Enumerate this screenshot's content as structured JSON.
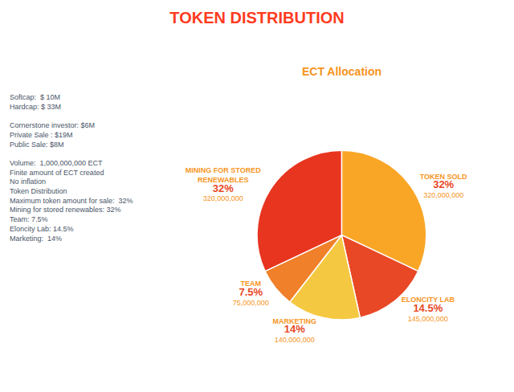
{
  "chart_data": {
    "type": "pie",
    "title": "TOKEN DISTRIBUTION",
    "subtitle": "ECT Allocation",
    "categories": [
      "TOKEN SOLD",
      "ELONCITY LAB",
      "MARKETING",
      "TEAM",
      "MINING FOR STORED\nRENEWABLES"
    ],
    "values": [
      32,
      14.5,
      14,
      7.5,
      32
    ],
    "value_labels": [
      "32%",
      "14.5%",
      "14%",
      "7.5%",
      "32%"
    ],
    "amounts": [
      320000000,
      145000000,
      140000000,
      75000000,
      320000000
    ],
    "amount_labels": [
      "320,000,000",
      "145,000,000",
      "140,000,000",
      "75,000,000",
      "320,000,000"
    ],
    "colors": [
      "#F9A626",
      "#E84825",
      "#F5C842",
      "#F0802A",
      "#E83520"
    ],
    "data_labels": true,
    "annotations": [
      [
        "Softcap:  $ 10M",
        "Hardcap: $ 33M"
      ],
      [
        "Cornerstone investor: $6M",
        "Private Sale : $19M",
        "Public Sale: $8M"
      ],
      [
        "Volume:  1,000,000,000 ECT",
        "Finite amount of ECT created",
        "No inflation",
        "Token Distribution",
        "Maximum token amount for sale:  32%",
        "Mining for stored renewables: 32%",
        "Team: 7.5%",
        "Eloncity Lab: 14.5%",
        "Marketing:  14%"
      ]
    ]
  }
}
